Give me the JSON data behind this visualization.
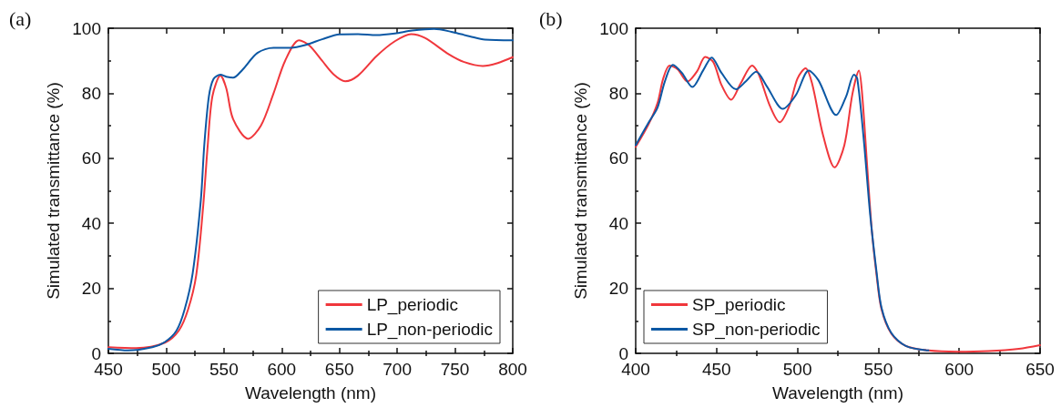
{
  "chart_data": [
    {
      "type": "line",
      "annotations": [
        "(a)"
      ],
      "xlabel": "Wavelength (nm)",
      "ylabel": "Simulated transmittance (%)",
      "xlim": [
        450,
        800
      ],
      "xticks": [
        450,
        500,
        550,
        600,
        650,
        700,
        750,
        800
      ],
      "ylim": [
        0,
        100
      ],
      "yticks": [
        0,
        20,
        40,
        60,
        80,
        100
      ],
      "legend": "bottom right",
      "grid": false,
      "marker": "none",
      "line_style": "solid",
      "series": [
        {
          "name": "LP_periodic",
          "color": "#f0373c",
          "x": [
            450,
            474,
            499,
            511,
            519,
            526,
            532,
            536,
            540,
            547,
            552,
            558,
            571,
            582,
            593,
            603,
            615,
            624,
            635,
            645,
            655,
            666,
            682,
            698,
            712,
            724,
            745,
            758,
            774,
            787,
            800
          ],
          "values": [
            1.9,
            1.6,
            3.3,
            7,
            13.5,
            24,
            45,
            64,
            79,
            85.4,
            81.6,
            72,
            66,
            70,
            80,
            90,
            96.3,
            94.7,
            90,
            85.8,
            83.7,
            85.4,
            91.4,
            96,
            98.2,
            97,
            91.9,
            89.6,
            88.4,
            89.3,
            91.1
          ]
        },
        {
          "name": "LP_non-periodic",
          "color": "#0c58a4",
          "x": [
            450,
            467,
            488,
            499,
            509,
            516,
            523,
            530,
            533,
            537,
            541,
            547,
            552,
            558,
            566,
            579,
            593,
            608,
            621,
            635,
            650,
            666,
            682,
            698,
            713,
            732,
            747,
            763,
            776,
            800
          ],
          "values": [
            1.4,
            0.9,
            1.9,
            3.5,
            7,
            13.5,
            24.7,
            47,
            64,
            79,
            84.4,
            85.7,
            85.1,
            84.8,
            87.2,
            92.4,
            94,
            94,
            94.9,
            96.6,
            98.1,
            98.2,
            97.9,
            98.4,
            99.3,
            99.8,
            98.9,
            97.5,
            96.5,
            96.3
          ]
        }
      ]
    },
    {
      "type": "line",
      "annotations": [
        "(b)"
      ],
      "xlabel": "Wavelength (nm)",
      "ylabel": "Simulated transmittance (%)",
      "xlim": [
        400,
        650
      ],
      "xticks": [
        400,
        450,
        500,
        550,
        600,
        650
      ],
      "ylim": [
        0,
        100
      ],
      "yticks": [
        0,
        20,
        40,
        60,
        80,
        100
      ],
      "legend": "bottom left",
      "grid": false,
      "marker": "none",
      "line_style": "solid",
      "series": [
        {
          "name": "SP_periodic",
          "color": "#f0373c",
          "x": [
            400,
            408,
            413.5,
            417,
            421,
            426,
            432,
            438,
            443,
            448,
            453,
            459,
            465,
            472,
            476,
            483,
            489,
            495,
            500,
            505,
            509,
            516,
            523,
            529,
            534,
            538,
            540,
            543,
            546,
            549,
            552,
            558,
            567,
            581,
            599,
            618,
            637,
            650
          ],
          "values": [
            63.5,
            70.5,
            77,
            84.5,
            88.5,
            87.3,
            83.6,
            86.8,
            91.2,
            89.6,
            82.6,
            78,
            83.1,
            88.5,
            85.9,
            76.1,
            71.1,
            76.1,
            84.5,
            87.7,
            83.1,
            66.8,
            57.2,
            64,
            79.8,
            87,
            79.8,
            58.4,
            37.8,
            23.8,
            13.5,
            6.1,
            2.3,
            0.9,
            0.5,
            0.7,
            1.4,
            2.5
          ]
        },
        {
          "name": "SP_non-periodic",
          "color": "#0c58a4",
          "x": [
            400,
            408,
            413.5,
            418,
            423,
            428.5,
            435,
            442,
            447,
            453,
            462,
            468,
            474.5,
            481,
            491,
            499,
            507,
            513,
            524,
            530,
            535,
            537,
            541,
            545,
            549,
            552,
            558,
            567,
            581
          ],
          "values": [
            64,
            71,
            75.6,
            83.6,
            88.7,
            86.3,
            81.9,
            87.3,
            91,
            86.3,
            81.2,
            83.6,
            86.6,
            82.2,
            75.2,
            79.4,
            87,
            84,
            73.3,
            78.9,
            85.7,
            84.5,
            65.8,
            42.5,
            24.7,
            14,
            6.3,
            2.3,
            0.9
          ]
        }
      ]
    }
  ]
}
